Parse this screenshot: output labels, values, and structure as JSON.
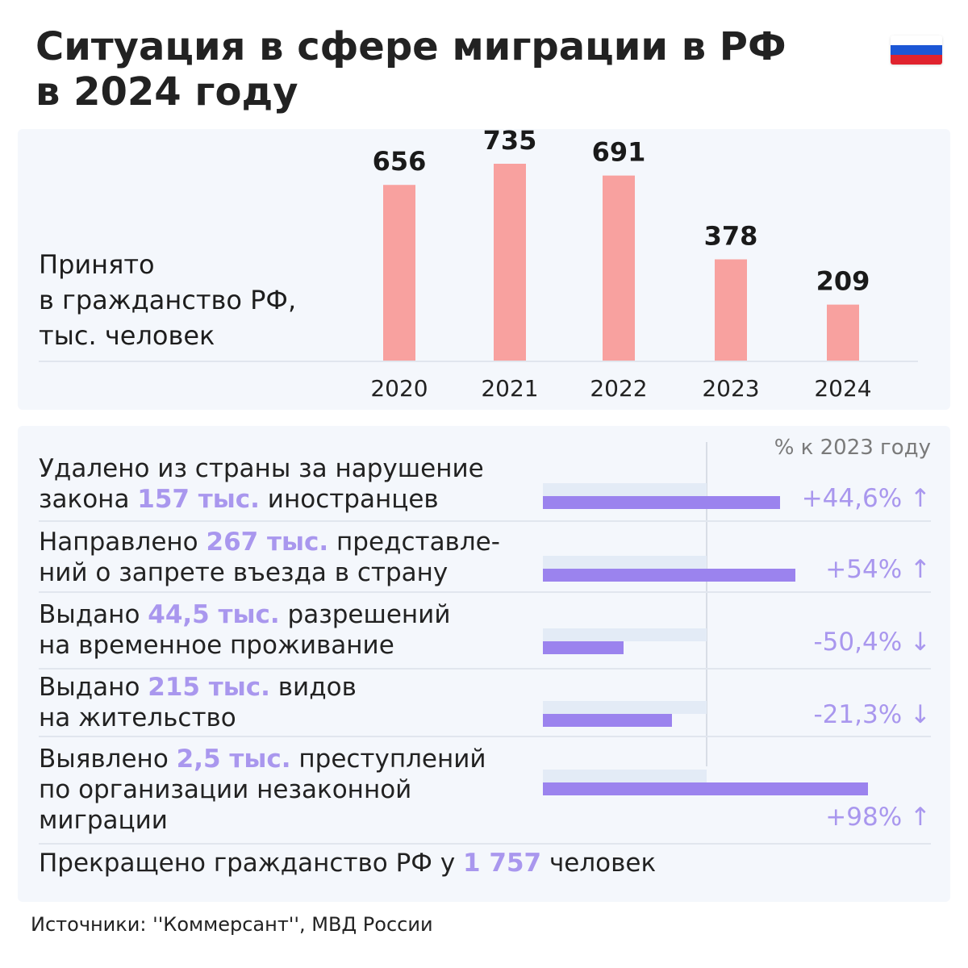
{
  "title": {
    "line1": "Ситуация в сфере миграции в РФ",
    "line2": "в 2024 году"
  },
  "flag": {
    "icon": "russian-flag-icon",
    "colors": [
      "#ffffff",
      "#1c57d6",
      "#e0232e"
    ]
  },
  "chart_label": {
    "line1": "Принято",
    "line2": "в гражданство РФ,",
    "line3": "тыс. человек"
  },
  "colors": {
    "bar": "#f8a19f",
    "highlight": "#a997ee",
    "progress_bar": "#9b83ee",
    "progress_track": "#e3ebf6",
    "panel": "#f4f7fc"
  },
  "chart_data": {
    "type": "bar",
    "title": "",
    "xlabel": "",
    "ylabel": "",
    "categories": [
      "2020",
      "2021",
      "2022",
      "2023",
      "2024"
    ],
    "values": [
      656,
      735,
      691,
      378,
      209
    ],
    "data_labels": [
      "656",
      "735",
      "691",
      "378",
      "209"
    ],
    "ylim": [
      0,
      800
    ],
    "grid": false
  },
  "stats_header": "% к 2023 году",
  "stats": [
    {
      "before1": "Удалено из страны за нарушение",
      "highlight": "",
      "after1": "",
      "before2": "закона ",
      "highlight2": "157 тыс.",
      "after2": " иностранцев",
      "before3": "",
      "percent": "+44,6% ↑",
      "change": 44.6
    },
    {
      "before1": "Направлено ",
      "highlight": "267 тыс.",
      "after1": " представле-",
      "before2": "ний о запрете въезда в страну",
      "highlight2": "",
      "after2": "",
      "before3": "",
      "percent": "+54% ↑",
      "change": 54
    },
    {
      "before1": "Выдано ",
      "highlight": "44,5 тыс.",
      "after1": " разрешений",
      "before2": "на временное проживание",
      "highlight2": "",
      "after2": "",
      "before3": "",
      "percent": "-50,4% ↓",
      "change": -50.4
    },
    {
      "before1": "Выдано ",
      "highlight": "215 тыс.",
      "after1": " видов",
      "before2": "на жительство",
      "highlight2": "",
      "after2": "",
      "before3": "",
      "percent": "-21,3% ↓",
      "change": -21.3
    },
    {
      "before1": "Выявлено ",
      "highlight": "2,5 тыс.",
      "after1": " преступлений",
      "before2": "по организации незаконной",
      "highlight2": "",
      "after2": "",
      "before3": "миграции",
      "percent": "+98% ↑",
      "change": 98
    }
  ],
  "final": {
    "before": "Прекращено гражданство РФ у ",
    "highlight": "1 757",
    "after": " человек"
  },
  "source": "Источники: ''Коммерсант'', МВД России"
}
